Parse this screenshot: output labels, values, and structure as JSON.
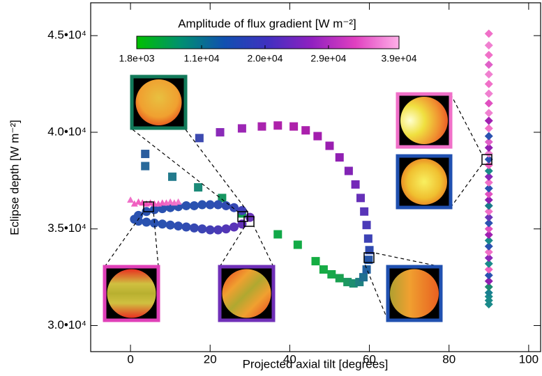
{
  "chart_data": {
    "type": "scatter",
    "xlabel": "Projected axial tilt [degrees]",
    "ylabel": "Eclipse depth [W m⁻²]",
    "xlim": [
      -10,
      103
    ],
    "ylim": [
      28650,
      46700
    ],
    "xticks": [
      0,
      20,
      40,
      60,
      80,
      100
    ],
    "yticks": [
      {
        "value": 30000,
        "label": "3.0•10⁴"
      },
      {
        "value": 35000,
        "label": "3.5•10⁴"
      },
      {
        "value": 40000,
        "label": "4.0•10⁴"
      },
      {
        "value": 45000,
        "label": "4.5•10⁴"
      }
    ],
    "colorbar": {
      "title": "Amplitude of flux gradient [W m⁻²]",
      "lim": [
        1800,
        39000
      ],
      "ticks": [
        {
          "value": 1800,
          "label": "1.8e+03"
        },
        {
          "value": 11000,
          "label": "1.1e+04"
        },
        {
          "value": 20000,
          "label": "2.0e+04"
        },
        {
          "value": 29000,
          "label": "2.9e+04"
        },
        {
          "value": 39000,
          "label": "3.9e+04"
        }
      ],
      "colors": [
        "#00c000",
        "#009070",
        "#1050b0",
        "#4030c0",
        "#9020c0",
        "#e040c0",
        "#ffb0e8"
      ]
    },
    "series": [
      {
        "marker": "square",
        "x": [
          3.7,
          3.7,
          10.5,
          17,
          23,
          28,
          37,
          42,
          46.5,
          48.5,
          50.5,
          52.5,
          54.5,
          56,
          57.5,
          58.5,
          59.3,
          59.8,
          60,
          59.7,
          59.3,
          58.7,
          57.8,
          56.5,
          54.8,
          52.5,
          50,
          47,
          44,
          41,
          37,
          33,
          28,
          22.5,
          17.3
        ],
        "values": [
          38880,
          38250,
          37700,
          37150,
          36600,
          35800,
          34720,
          34180,
          33330,
          32900,
          32650,
          32450,
          32250,
          32180,
          32250,
          32500,
          32900,
          33400,
          33900,
          34500,
          35200,
          35900,
          36600,
          37300,
          38000,
          38700,
          39300,
          39800,
          40100,
          40300,
          40350,
          40300,
          40200,
          40000,
          39700
        ],
        "colors": [
          "#2a5d9e",
          "#2a6a9a",
          "#237a8c",
          "#1c8a78",
          "#169660",
          "#12a050",
          "#10a848",
          "#12aa45",
          "#14ad42",
          "#16ab45",
          "#18a84a",
          "#1aa050",
          "#1c9860",
          "#1e8e70",
          "#1f8080",
          "#206f90",
          "#2160a0",
          "#2555a8",
          "#2f4ab0",
          "#3d42b5",
          "#4a3ab8",
          "#5835b8",
          "#6630b8",
          "#7428b8",
          "#8224b5",
          "#9020b2",
          "#9a1eb0",
          "#a31eae",
          "#aa20ac",
          "#ae22aa",
          "#ae22aa",
          "#a924ae",
          "#9c26b4",
          "#8a2ab8",
          "#3d4ab0"
        ]
      },
      {
        "marker": "circle",
        "x": [
          1,
          2,
          4,
          6,
          8,
          10,
          12,
          14,
          16,
          18,
          20,
          22,
          24,
          26,
          28,
          30,
          28,
          26,
          24,
          22,
          20,
          18,
          16,
          14,
          12,
          10,
          8,
          6,
          4,
          2
        ],
        "values": [
          35500,
          35700,
          35900,
          36000,
          36050,
          36100,
          36150,
          36200,
          36200,
          36250,
          36250,
          36250,
          36200,
          36100,
          35950,
          35600,
          35250,
          35100,
          35000,
          34950,
          34950,
          35000,
          35050,
          35100,
          35150,
          35200,
          35250,
          35300,
          35350,
          35400
        ],
        "colors": [
          "#2a52b0",
          "#2a52b0",
          "#2a52b0",
          "#2a52b0",
          "#2a52b0",
          "#2a52b0",
          "#2a52b0",
          "#2a52b0",
          "#2a52b0",
          "#2a52b0",
          "#2c50b2",
          "#2e4eb2",
          "#304cb2",
          "#3648b4",
          "#4040b6",
          "#6a35b8",
          "#6232b8",
          "#5a34b8",
          "#5236b6",
          "#4a3ab6",
          "#423eb4",
          "#3c44b4",
          "#3648b2",
          "#304cb2",
          "#2e4eb2",
          "#2c50b2",
          "#2a52b0",
          "#2a52b0",
          "#2a52b0",
          "#2a52b0"
        ]
      },
      {
        "marker": "triangle",
        "x": [
          0,
          1,
          2,
          3,
          4,
          5,
          6,
          7,
          8,
          9,
          10,
          11,
          12
        ],
        "values": [
          36500,
          36300,
          36400,
          36350,
          36300,
          36350,
          36300,
          36300,
          36350,
          36350,
          36400,
          36350,
          36400
        ],
        "colors": [
          "#f070c8",
          "#f060c0",
          "#f060c0",
          "#f050b8",
          "#f050b8",
          "#f050b8",
          "#f058bc",
          "#f060c0",
          "#f060c0",
          "#f068c4",
          "#f070c8",
          "#f070c8",
          "#f078cc"
        ]
      },
      {
        "marker": "diamond",
        "x": [
          90,
          90,
          90,
          90,
          90,
          90,
          90,
          90,
          90,
          90,
          90,
          90,
          90,
          90,
          90,
          90,
          90,
          90,
          90,
          90,
          90,
          90,
          90,
          90,
          90,
          90,
          90,
          90,
          90,
          90,
          90,
          90,
          90,
          90,
          90,
          90,
          90,
          90,
          90,
          90,
          90,
          90
        ],
        "values": [
          31100,
          31300,
          31500,
          31700,
          32000,
          32300,
          32600,
          32900,
          33200,
          33500,
          33800,
          34100,
          34400,
          34700,
          35000,
          35300,
          35600,
          35900,
          36200,
          36500,
          36800,
          37100,
          37400,
          37700,
          38000,
          38300,
          38600,
          38900,
          39200,
          39500,
          39800,
          40200,
          40600,
          41000,
          41500,
          42000,
          42500,
          43000,
          43500,
          44000,
          44500,
          45100
        ],
        "colors": [
          "#1a8a8a",
          "#1a8a8a",
          "#1a8a8a",
          "#1a8090",
          "#208a70",
          "#9020b0",
          "#2a52b0",
          "#f060c0",
          "#1a8a8a",
          "#8a28b8",
          "#f070c8",
          "#2a52b0",
          "#1a8a8a",
          "#a020b0",
          "#e050c0",
          "#2a52b0",
          "#6a35b8",
          "#f070c8",
          "#1a7a8a",
          "#9020b0",
          "#e050c0",
          "#2a52b0",
          "#f070c8",
          "#8a28b8",
          "#1a8a8a",
          "#f060c0",
          "#2a52b0",
          "#f080d0",
          "#9020b0",
          "#e060c8",
          "#2a52b0",
          "#f070c8",
          "#a020b0",
          "#f080d0",
          "#e050c0",
          "#f080d0",
          "#f070c8",
          "#f080d0",
          "#e060c8",
          "#f070c8",
          "#f080d0",
          "#f070c8"
        ]
      }
    ]
  }
}
